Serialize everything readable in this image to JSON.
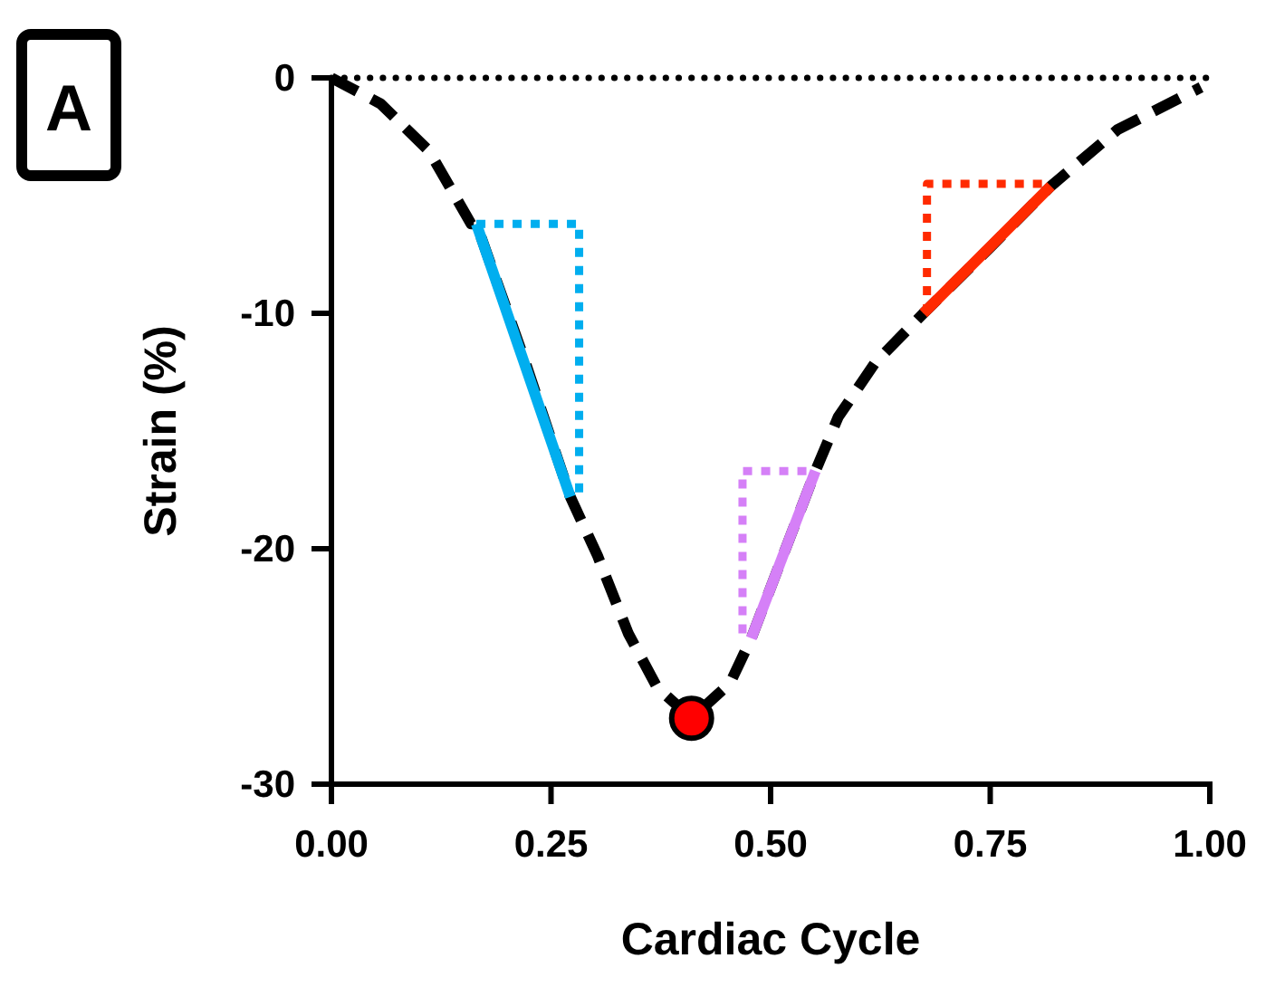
{
  "chart_data": {
    "type": "line",
    "xlabel": "Cardiac Cycle",
    "ylabel": "Strain (%)",
    "annotations": [
      "A"
    ],
    "xlim": [
      0,
      1
    ],
    "ylim": [
      -30,
      0
    ],
    "xticks": [
      {
        "value": 0,
        "label": "0.00"
      },
      {
        "value": 0.25,
        "label": "0.25"
      },
      {
        "value": 0.5,
        "label": "0.50"
      },
      {
        "value": 0.75,
        "label": "0.75"
      },
      {
        "value": 1,
        "label": "1.00"
      }
    ],
    "yticks": [
      0,
      -10,
      -20,
      -30
    ],
    "grid": false,
    "ref_lines": [
      {
        "axis": "y",
        "value": 0,
        "color": "#000000",
        "line_style": "dotted"
      }
    ],
    "series": [
      {
        "color": "#000000",
        "line_style": "dashed",
        "marker": "none",
        "x": [
          0,
          0.056,
          0.111,
          0.159,
          0.165,
          0.22,
          0.272,
          0.303,
          0.338,
          0.371,
          0.41,
          0.454,
          0.478,
          0.551,
          0.577,
          0.619,
          0.674,
          0.75,
          0.819,
          0.895,
          0.99
        ],
        "values": [
          0,
          -1.1,
          -3.1,
          -6.2,
          -6.2,
          -12,
          -17.8,
          -20.3,
          -23.6,
          -25.9,
          -27.2,
          -25.7,
          -23.8,
          -16.7,
          -14.4,
          -12.1,
          -10,
          -7.2,
          -4.6,
          -2.2,
          -0.4
        ]
      },
      {
        "color": "#00aeef",
        "line_style": "solid",
        "marker": "none",
        "x": [
          0.165,
          0.272
        ],
        "values": [
          -6.2,
          -17.8
        ]
      },
      {
        "color": "#00aeef",
        "line_style": "dotted",
        "marker": "none",
        "x": [
          0.165,
          0.282,
          0.282
        ],
        "values": [
          -6.2,
          -6.2,
          -17.8
        ]
      },
      {
        "color": "#d580f7",
        "line_style": "solid",
        "marker": "none",
        "x": [
          0.478,
          0.551
        ],
        "values": [
          -23.8,
          -16.7
        ]
      },
      {
        "color": "#d580f7",
        "line_style": "dotted",
        "marker": "none",
        "x": [
          0.468,
          0.468,
          0.551
        ],
        "values": [
          -23.6,
          -16.7,
          -16.7
        ]
      },
      {
        "color": "#ff2a00",
        "line_style": "solid",
        "marker": "none",
        "x": [
          0.674,
          0.819
        ],
        "values": [
          -10,
          -4.6
        ]
      },
      {
        "color": "#ff2a00",
        "line_style": "dotted",
        "marker": "none",
        "x": [
          0.678,
          0.678,
          0.819
        ],
        "values": [
          -10,
          -4.5,
          -4.5
        ]
      },
      {
        "type": "scatter",
        "color": "#ff0000",
        "marker": "circle",
        "x": [
          0.41
        ],
        "values": [
          -27.2
        ]
      }
    ]
  }
}
